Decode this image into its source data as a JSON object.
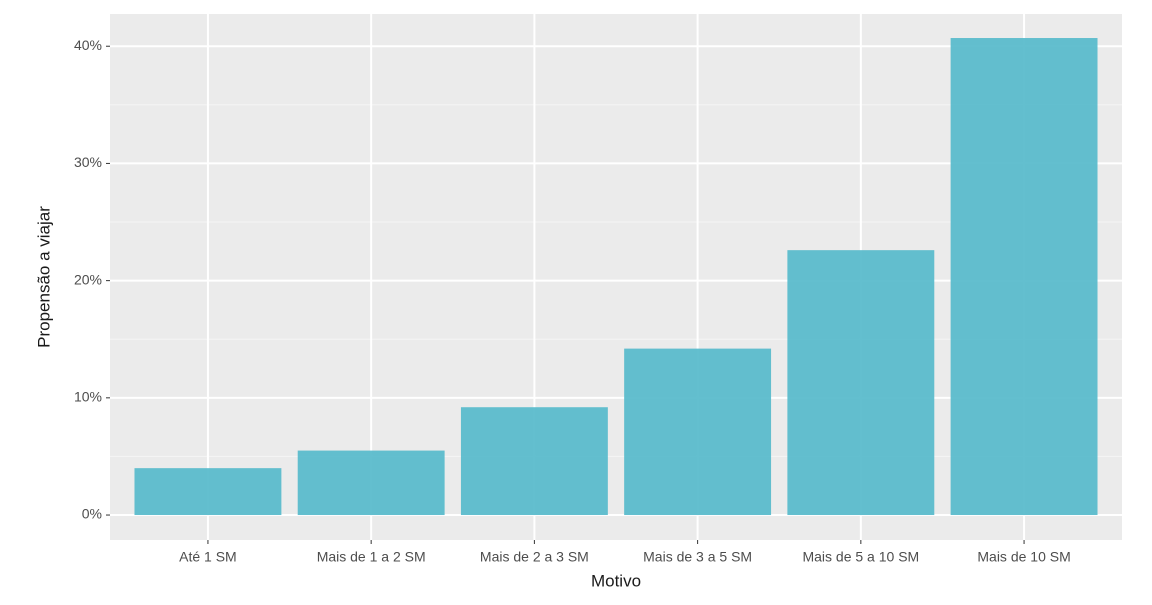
{
  "chart_data": {
    "type": "bar",
    "x_label": "Motivo",
    "y_label": "Propensão a viajar",
    "categories": [
      "Até 1 SM",
      "Mais de 1 a 2 SM",
      "Mais de 2 a 3 SM",
      "Mais de 3 a 5 SM",
      "Mais de 5 a 10 SM",
      "Mais de 10 SM"
    ],
    "values": [
      4.0,
      5.5,
      9.2,
      14.2,
      22.6,
      40.7
    ],
    "color": "#5bbccc",
    "ylim": [
      -2.13,
      42.75
    ],
    "yticks": [
      {
        "value": 0,
        "label": "0%"
      },
      {
        "value": 10,
        "label": "10%"
      },
      {
        "value": 20,
        "label": "20%"
      },
      {
        "value": 30,
        "label": "30%"
      },
      {
        "value": 40,
        "label": "40%"
      }
    ],
    "grid": true
  }
}
